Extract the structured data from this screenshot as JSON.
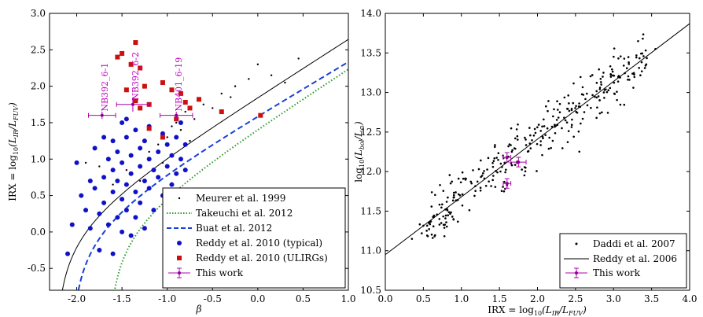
{
  "chart_data": [
    {
      "type": "scatter",
      "xlabel": "β",
      "ylabel": "IRX = log10(L_IR/L_FUV)",
      "xlim": [
        -2.3,
        1.0
      ],
      "ylim": [
        -0.8,
        3.0
      ],
      "xticks": [
        "-2.0",
        "-1.5",
        "-1.0",
        "-0.5",
        "0.0",
        "0.5",
        "1.0"
      ],
      "yticks": [
        "-0.5",
        "0.0",
        "0.5",
        "1.0",
        "1.5",
        "2.0",
        "2.5",
        "3.0"
      ],
      "xtick_values": [
        -2.0,
        -1.5,
        -1.0,
        -0.5,
        0.0,
        0.5,
        1.0
      ],
      "ytick_values": [
        -0.5,
        0.0,
        0.5,
        1.0,
        1.5,
        2.0,
        2.5,
        3.0
      ],
      "legend": [
        "Meurer et al. 1999",
        "Takeuchi et al. 2012",
        "Buat et al. 2012",
        "Reddy et al. 2010 (typical)",
        "Reddy et al. 2010 (ULIRGs)",
        "This work"
      ],
      "legend_position": "lower-right",
      "curves": [
        {
          "name": "Meurer et al. 1999",
          "style": "solid",
          "color": "#000000",
          "intercept": 4.43,
          "slope": 1.99
        },
        {
          "name": "Takeuchi et al. 2012",
          "style": "dotted",
          "color": "#2a9a2a",
          "intercept": 3.36,
          "slope": 2.04
        },
        {
          "name": "Buat et al. 2012",
          "style": "dashed",
          "color": "#1a3fd6",
          "intercept": 3.8,
          "slope": 1.85
        }
      ],
      "meurer_points": [
        [
          -1.9,
          0.95
        ],
        [
          -1.75,
          0.9
        ],
        [
          -1.6,
          0.65
        ],
        [
          -1.45,
          0.85
        ],
        [
          -1.3,
          0.7
        ],
        [
          -1.2,
          1.1
        ],
        [
          -1.1,
          1.2
        ],
        [
          -1.0,
          1.3
        ],
        [
          -0.95,
          1.45
        ],
        [
          -0.9,
          1.5
        ],
        [
          -0.85,
          1.4
        ],
        [
          -0.8,
          1.65
        ],
        [
          -0.7,
          1.55
        ],
        [
          -0.6,
          1.75
        ],
        [
          -0.5,
          1.7
        ],
        [
          -0.4,
          1.9
        ],
        [
          -0.3,
          1.85
        ],
        [
          -0.25,
          2.0
        ],
        [
          -0.1,
          2.1
        ],
        [
          0.0,
          2.3
        ],
        [
          0.15,
          2.15
        ],
        [
          0.3,
          2.05
        ],
        [
          0.45,
          2.38
        ],
        [
          -1.05,
          0.95
        ],
        [
          -0.75,
          1.25
        ]
      ],
      "reddy_typical": [
        [
          -2.1,
          -0.3
        ],
        [
          -2.05,
          0.1
        ],
        [
          -2.0,
          0.95
        ],
        [
          -1.95,
          0.5
        ],
        [
          -1.9,
          0.3
        ],
        [
          -1.85,
          0.7
        ],
        [
          -1.85,
          0.05
        ],
        [
          -1.8,
          0.6
        ],
        [
          -1.8,
          1.15
        ],
        [
          -1.75,
          0.25
        ],
        [
          -1.75,
          -0.25
        ],
        [
          -1.7,
          0.75
        ],
        [
          -1.7,
          0.4
        ],
        [
          -1.65,
          1.0
        ],
        [
          -1.65,
          0.1
        ],
        [
          -1.6,
          0.55
        ],
        [
          -1.6,
          0.85
        ],
        [
          -1.6,
          1.25
        ],
        [
          -1.55,
          0.2
        ],
        [
          -1.55,
          0.7
        ],
        [
          -1.5,
          1.5
        ],
        [
          -1.5,
          0.95
        ],
        [
          -1.5,
          0.45
        ],
        [
          -1.5,
          0.0
        ],
        [
          -1.45,
          1.3
        ],
        [
          -1.45,
          0.65
        ],
        [
          -1.45,
          0.3
        ],
        [
          -1.4,
          1.05
        ],
        [
          -1.4,
          0.8
        ],
        [
          -1.4,
          -0.05
        ],
        [
          -1.35,
          1.4
        ],
        [
          -1.35,
          0.55
        ],
        [
          -1.35,
          0.2
        ],
        [
          -1.3,
          1.15
        ],
        [
          -1.3,
          0.9
        ],
        [
          -1.3,
          0.4
        ],
        [
          -1.25,
          1.25
        ],
        [
          -1.25,
          0.7
        ],
        [
          -1.25,
          0.05
        ],
        [
          -1.2,
          1.0
        ],
        [
          -1.2,
          0.6
        ],
        [
          -1.2,
          1.45
        ],
        [
          -1.15,
          0.85
        ],
        [
          -1.15,
          0.3
        ],
        [
          -1.1,
          1.1
        ],
        [
          -1.1,
          0.75
        ],
        [
          -1.05,
          1.35
        ],
        [
          -1.05,
          0.5
        ],
        [
          -1.0,
          1.2
        ],
        [
          -1.0,
          0.9
        ],
        [
          -0.95,
          1.05
        ],
        [
          -0.95,
          0.65
        ],
        [
          -0.9,
          1.3
        ],
        [
          -0.9,
          0.8
        ],
        [
          -0.85,
          1.5
        ],
        [
          -0.85,
          1.0
        ],
        [
          -0.8,
          1.2
        ],
        [
          -0.8,
          0.85
        ],
        [
          -1.6,
          -0.3
        ],
        [
          -1.55,
          1.1
        ],
        [
          -1.45,
          1.55
        ],
        [
          -1.7,
          1.3
        ]
      ],
      "reddy_ulirgs": [
        [
          -1.5,
          2.45
        ],
        [
          -1.55,
          2.4
        ],
        [
          -1.4,
          2.3
        ],
        [
          -1.35,
          2.6
        ],
        [
          -1.3,
          2.25
        ],
        [
          -1.25,
          2.0
        ],
        [
          -1.2,
          1.75
        ],
        [
          -1.45,
          1.95
        ],
        [
          -1.35,
          1.8
        ],
        [
          -1.3,
          1.7
        ],
        [
          -1.2,
          1.42
        ],
        [
          -1.05,
          2.05
        ],
        [
          -0.95,
          1.95
        ],
        [
          -0.85,
          1.9
        ],
        [
          -0.8,
          1.78
        ],
        [
          -0.75,
          1.7
        ],
        [
          -0.65,
          1.82
        ],
        [
          -0.4,
          1.65
        ],
        [
          0.03,
          1.6
        ],
        [
          -0.9,
          1.55
        ],
        [
          -1.05,
          1.3
        ]
      ],
      "this_work": [
        {
          "label": "NB392_6-1",
          "beta": -1.72,
          "irx": 1.6,
          "beta_err": 0.15,
          "irx_err": 0.05
        },
        {
          "label": "NB392_6-2",
          "beta": -1.38,
          "irx": 1.75,
          "beta_err": 0.18,
          "irx_err": 0.1
        },
        {
          "label": "NB401_6-19",
          "beta": -0.9,
          "irx": 1.6,
          "beta_err": 0.18,
          "irx_err": 0.05
        }
      ]
    },
    {
      "type": "scatter",
      "xlabel": "IRX = log10(L_IR/L_FUV)",
      "ylabel": "log10(L_bol/L_⊙)",
      "xlim": [
        0.0,
        4.0
      ],
      "ylim": [
        10.5,
        14.0
      ],
      "xticks": [
        "0.0",
        "0.5",
        "1.0",
        "1.5",
        "2.0",
        "2.5",
        "3.0",
        "3.5",
        "4.0"
      ],
      "yticks": [
        "10.5",
        "11.0",
        "11.5",
        "12.0",
        "12.5",
        "13.0",
        "13.5",
        "14.0"
      ],
      "xtick_values": [
        0.0,
        0.5,
        1.0,
        1.5,
        2.0,
        2.5,
        3.0,
        3.5,
        4.0
      ],
      "ytick_values": [
        10.5,
        11.0,
        11.5,
        12.0,
        12.5,
        13.0,
        13.5,
        14.0
      ],
      "legend": [
        "Daddi et al. 2007",
        "Reddy et al. 2006",
        "This work"
      ],
      "legend_position": "lower-right",
      "line": {
        "name": "Reddy et al. 2006",
        "intercept": 10.95,
        "slope": 0.73
      },
      "this_work": [
        {
          "irx": 1.6,
          "lbol": 12.18,
          "xerr": 0.05,
          "yerr": 0.06
        },
        {
          "irx": 1.75,
          "lbol": 12.12,
          "xerr": 0.1,
          "yerr": 0.06
        },
        {
          "irx": 1.6,
          "lbol": 11.85,
          "xerr": 0.05,
          "yerr": 0.06
        }
      ]
    }
  ],
  "annotations": [
    "NB392_6-1",
    "NB392_6-2",
    "NB401_6-19"
  ],
  "label_parts": {
    "irx_prefix": "IRX = log",
    "log_sub": "10",
    "lir": "L",
    "ir_sub": "IR",
    "lfuv": "L",
    "fuv_sub": "FUV",
    "lbol": "L",
    "bol_sub": "bol",
    "sun_sub": "⊙",
    "beta": "β"
  }
}
